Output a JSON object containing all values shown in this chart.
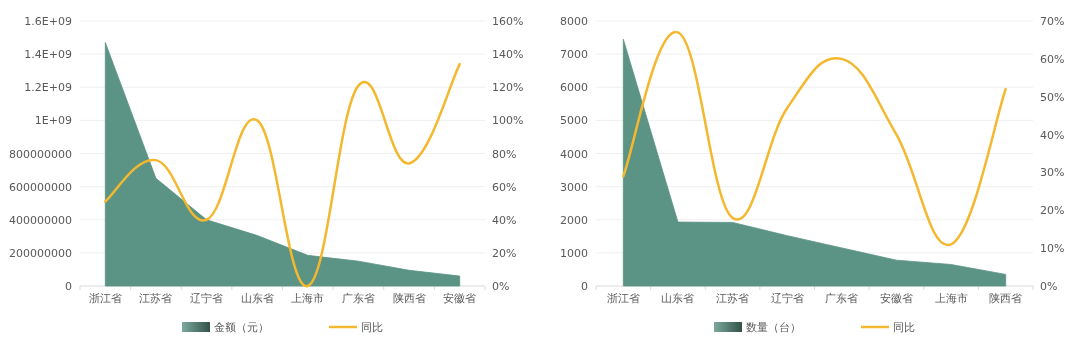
{
  "chart_data": [
    {
      "type": "area",
      "categories": [
        "浙江省",
        "江苏省",
        "辽宁省",
        "山东省",
        "上海市",
        "广东省",
        "陕西省",
        "安徽省"
      ],
      "series": [
        {
          "name": "金额（元）",
          "type": "area",
          "color": "#5b9385",
          "values": [
            1470000000,
            650000000,
            400000000,
            305000000,
            185000000,
            150000000,
            95000000,
            60000000
          ]
        },
        {
          "name": "同比",
          "type": "line",
          "axis": "y2",
          "color": "#f4b82f",
          "values": [
            51,
            76,
            40,
            100,
            0,
            121,
            74,
            134
          ]
        }
      ],
      "ylim": [
        0,
        1600000000
      ],
      "yticks": [
        0,
        {
          "value": 200000000,
          "label": "200000000"
        },
        {
          "value": 400000000,
          "label": "400000000"
        },
        {
          "value": 600000000,
          "label": "600000000"
        },
        {
          "value": 800000000,
          "label": "800000000"
        },
        {
          "value": 1000000000,
          "label": "1E+09"
        },
        {
          "value": 1200000000,
          "label": "1.2E+09"
        },
        {
          "value": 1400000000,
          "label": "1.4E+09"
        },
        {
          "value": 1600000000,
          "label": "1.6E+09"
        }
      ],
      "y2lim": [
        0,
        160
      ],
      "y2ticks": [
        {
          "value": 0,
          "label": "0%"
        },
        {
          "value": 20,
          "label": "20%"
        },
        {
          "value": 40,
          "label": "40%"
        },
        {
          "value": 60,
          "label": "60%"
        },
        {
          "value": 80,
          "label": "80%"
        },
        {
          "value": 100,
          "label": "100%"
        },
        {
          "value": 120,
          "label": "120%"
        },
        {
          "value": 140,
          "label": "140%"
        },
        {
          "value": 160,
          "label": "160%"
        }
      ],
      "grid": "y",
      "legend": "bottom",
      "marker": "none"
    },
    {
      "type": "area",
      "categories": [
        "浙江省",
        "山东省",
        "江苏省",
        "辽宁省",
        "广东省",
        "安徽省",
        "上海市",
        "陕西省"
      ],
      "series": [
        {
          "name": "数量（台）",
          "type": "area",
          "color": "#5b9385",
          "values": [
            7450,
            1930,
            1920,
            1520,
            1150,
            780,
            650,
            350
          ]
        },
        {
          "name": "同比",
          "type": "line",
          "axis": "y2",
          "color": "#f4b82f",
          "values": [
            29,
            67,
            18,
            47,
            60,
            40,
            11,
            52
          ]
        }
      ],
      "ylim": [
        0,
        8000
      ],
      "yticks": [
        0,
        1000,
        2000,
        3000,
        4000,
        5000,
        6000,
        7000,
        8000
      ],
      "y2lim": [
        0,
        70
      ],
      "y2ticks": [
        {
          "value": 0,
          "label": "0%"
        },
        {
          "value": 10,
          "label": "10%"
        },
        {
          "value": 20,
          "label": "20%"
        },
        {
          "value": 30,
          "label": "30%"
        },
        {
          "value": 40,
          "label": "40%"
        },
        {
          "value": 50,
          "label": "50%"
        },
        {
          "value": 60,
          "label": "60%"
        },
        {
          "value": 70,
          "label": "70%"
        }
      ],
      "grid": "y",
      "legend": "bottom",
      "marker": "none"
    }
  ]
}
